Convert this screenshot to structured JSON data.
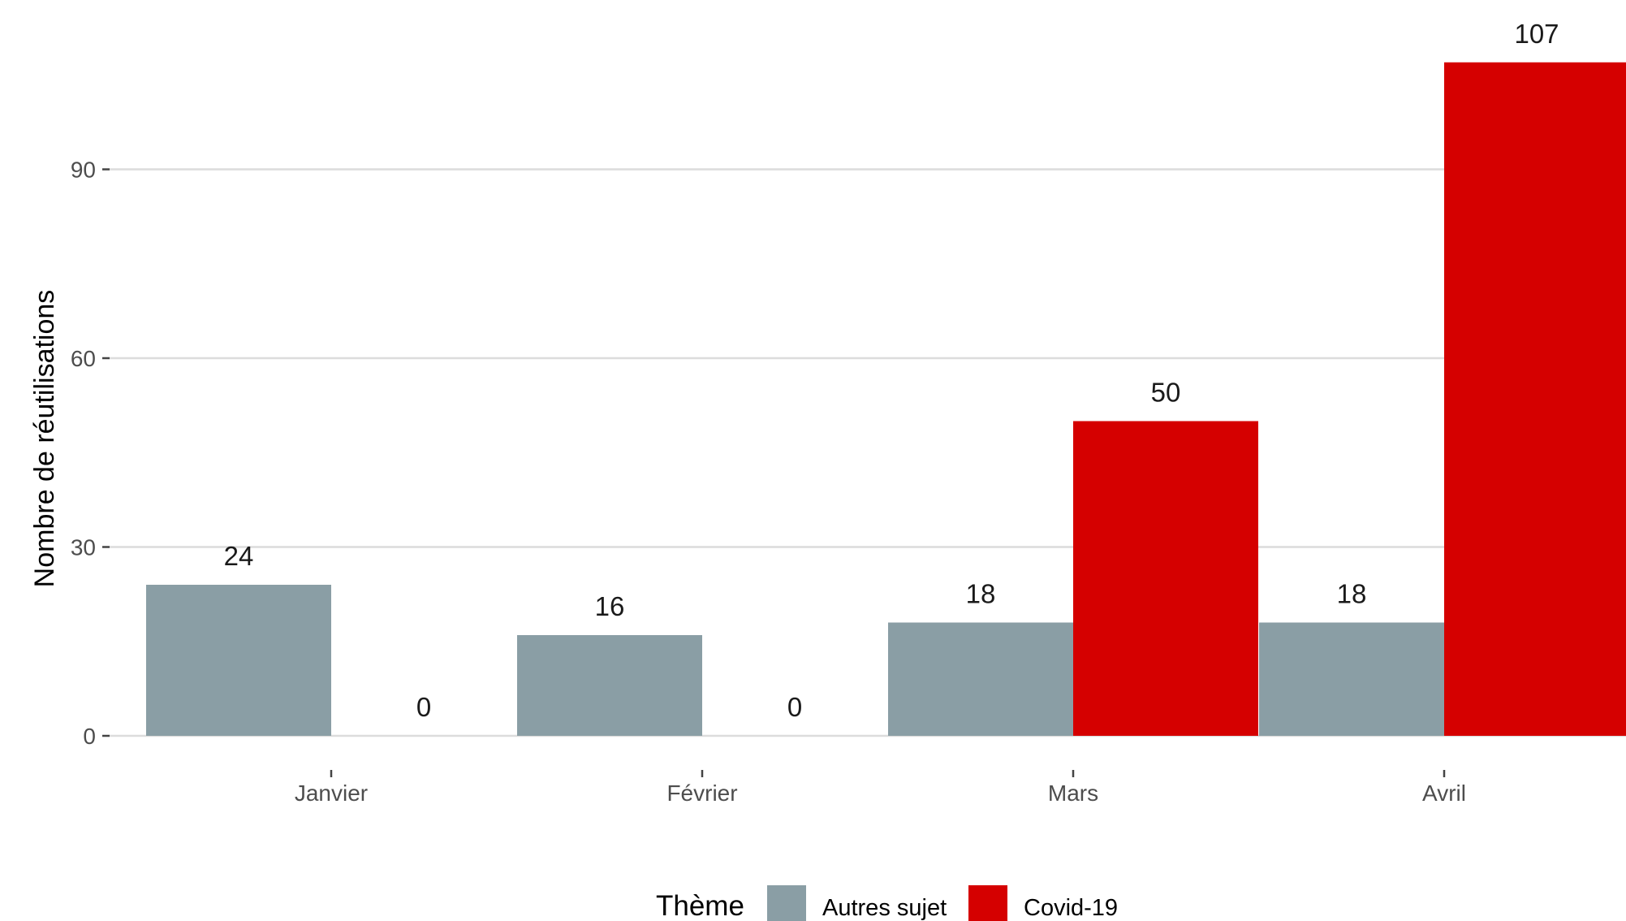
{
  "chart_data": {
    "type": "bar",
    "categories": [
      "Janvier",
      "Février",
      "Mars",
      "Avril"
    ],
    "series": [
      {
        "name": "Autres sujet",
        "color": "#8a9ea5",
        "values": [
          24,
          16,
          18,
          18
        ]
      },
      {
        "name": "Covid-19",
        "color": "#d50000",
        "values": [
          0,
          0,
          50,
          107
        ]
      }
    ],
    "ylabel": "Nombre de réutilisations",
    "xlabel": "",
    "yticks": [
      0,
      30,
      60,
      90
    ],
    "ylim": [
      0,
      113
    ],
    "grid": true,
    "legend": {
      "title": "Thème",
      "position": "bottom"
    }
  }
}
